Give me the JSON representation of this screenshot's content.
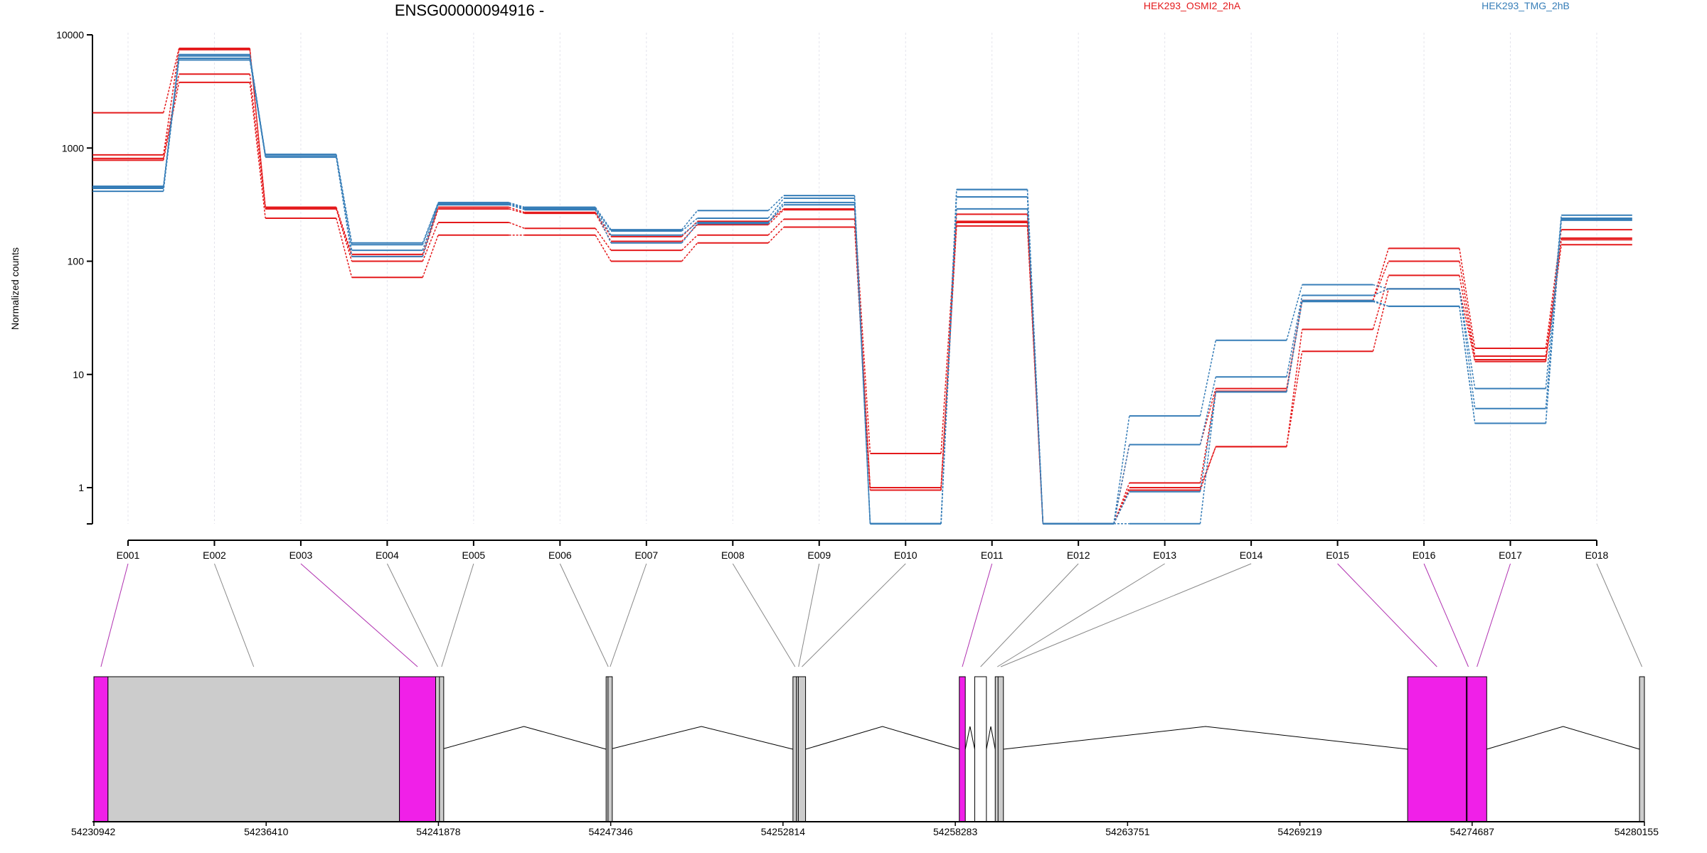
{
  "chart_data": {
    "type": "line",
    "title": "ENSG00000094916 -",
    "ylabel": "Normalized counts",
    "yscale": "log",
    "ylim": [
      0.45,
      10000
    ],
    "yticks": [
      "1",
      "10",
      "100",
      "1000",
      "10000"
    ],
    "ytick_values": [
      1,
      10,
      100,
      1000,
      10000
    ],
    "categories": [
      "E001",
      "E002",
      "E003",
      "E004",
      "E005",
      "E006",
      "E007",
      "E008",
      "E009",
      "E010",
      "E011",
      "E012",
      "E013",
      "E014",
      "E015",
      "E016",
      "E017",
      "E018"
    ],
    "grid": "vertical dotted lines at each exon",
    "colors": {
      "HEK293_OSMI2_2hA": "#e41a1c",
      "HEK293_TMG_2hB": "#377eb8"
    },
    "series": [
      {
        "name": "HEK293_OSMI2_2hA",
        "color": "#e41a1c",
        "values": [
          2050,
          7600,
          300,
          115,
          300,
          270,
          165,
          225,
          290,
          2.0,
          260,
          0.48,
          2.4,
          7.5,
          45,
          130,
          17,
          190
        ]
      },
      {
        "name": "HEK293_OSMI2_2hA",
        "color": "#e41a1c",
        "values": [
          870,
          7400,
          295,
          110,
          290,
          265,
          150,
          210,
          285,
          1.0,
          225,
          0.48,
          1.1,
          7.1,
          45,
          100,
          14.5,
          160
        ]
      },
      {
        "name": "HEK293_OSMI2_2hA",
        "color": "#e41a1c",
        "values": [
          810,
          4500,
          290,
          100,
          220,
          195,
          125,
          170,
          235,
          0.95,
          220,
          0.48,
          1.0,
          2.3,
          25,
          75,
          13.5,
          155
        ]
      },
      {
        "name": "HEK293_OSMI2_2hA",
        "color": "#e41a1c",
        "values": [
          780,
          3800,
          240,
          72,
          170,
          170,
          100,
          145,
          200,
          0.95,
          205,
          0.48,
          0.95,
          2.3,
          16,
          57,
          13,
          140
        ]
      },
      {
        "name": "HEK293_TMG_2hB",
        "color": "#377eb8",
        "values": [
          460,
          6700,
          880,
          145,
          330,
          300,
          190,
          280,
          380,
          0.48,
          430,
          0.48,
          4.3,
          20,
          62,
          57,
          7.5,
          255
        ]
      },
      {
        "name": "HEK293_TMG_2hB",
        "color": "#377eb8",
        "values": [
          450,
          6500,
          870,
          140,
          325,
          295,
          185,
          240,
          360,
          0.48,
          430,
          0.48,
          2.4,
          9.5,
          50,
          57,
          5.0,
          240
        ]
      },
      {
        "name": "HEK293_TMG_2hB",
        "color": "#377eb8",
        "values": [
          440,
          6200,
          840,
          125,
          320,
          290,
          170,
          220,
          330,
          0.48,
          370,
          0.48,
          0.92,
          7.0,
          45,
          40,
          3.7,
          235
        ]
      },
      {
        "name": "HEK293_TMG_2hB",
        "color": "#377eb8",
        "values": [
          415,
          6000,
          830,
          110,
          315,
          285,
          145,
          215,
          315,
          0.48,
          290,
          0.48,
          0.48,
          7.0,
          44,
          40,
          3.7,
          230
        ]
      }
    ],
    "gene_model": {
      "coordinates": [
        "54230942",
        "54236410",
        "54241878",
        "54247346",
        "54252814",
        "54258283",
        "54263751",
        "54269219",
        "54274687",
        "54280155"
      ],
      "coordinate_values": [
        54230942,
        54236410,
        54241878,
        54247346,
        54252814,
        54258283,
        54263751,
        54269219,
        54274687,
        54280155
      ],
      "range": [
        54230942,
        54280155
      ],
      "colors": {
        "tested": "#cccccc",
        "significant": "#f020e8",
        "untested": "#ffffff"
      },
      "exons": [
        {
          "id": "E001",
          "start": 54230942,
          "end": 54231390,
          "status": "significant"
        },
        {
          "id": "E002",
          "start": 54231390,
          "end": 54240640,
          "status": "tested"
        },
        {
          "id": "E003",
          "start": 54240640,
          "end": 54241790,
          "status": "significant"
        },
        {
          "id": "E004",
          "start": 54241790,
          "end": 54241910,
          "status": "tested"
        },
        {
          "id": "E005",
          "start": 54241910,
          "end": 54241980,
          "status": "tested"
        },
        {
          "id": "E006",
          "start": 54247200,
          "end": 54247260,
          "status": "tested"
        },
        {
          "id": "E007",
          "start": 54247260,
          "end": 54247320,
          "status": "tested"
        },
        {
          "id": "E008",
          "start": 54253130,
          "end": 54253240,
          "status": "tested"
        },
        {
          "id": "E009",
          "start": 54253240,
          "end": 54253300,
          "status": "tested"
        },
        {
          "id": "E010",
          "start": 54253300,
          "end": 54253530,
          "status": "tested"
        },
        {
          "id": "E011",
          "start": 54258410,
          "end": 54258600,
          "status": "significant"
        },
        {
          "id": "E012",
          "start": 54258900,
          "end": 54259270,
          "status": "untested"
        },
        {
          "id": "E013",
          "start": 54259550,
          "end": 54259640,
          "status": "tested"
        },
        {
          "id": "E014",
          "start": 54259640,
          "end": 54259810,
          "status": "tested"
        },
        {
          "id": "E015",
          "start": 54272640,
          "end": 54274500,
          "status": "significant"
        },
        {
          "id": "E016",
          "start": 54274500,
          "end": 54274530,
          "status": "significant"
        },
        {
          "id": "E017",
          "start": 54274530,
          "end": 54275150,
          "status": "significant"
        },
        {
          "id": "E018",
          "start": 54280000,
          "end": 54280155,
          "status": "tested"
        }
      ]
    }
  }
}
